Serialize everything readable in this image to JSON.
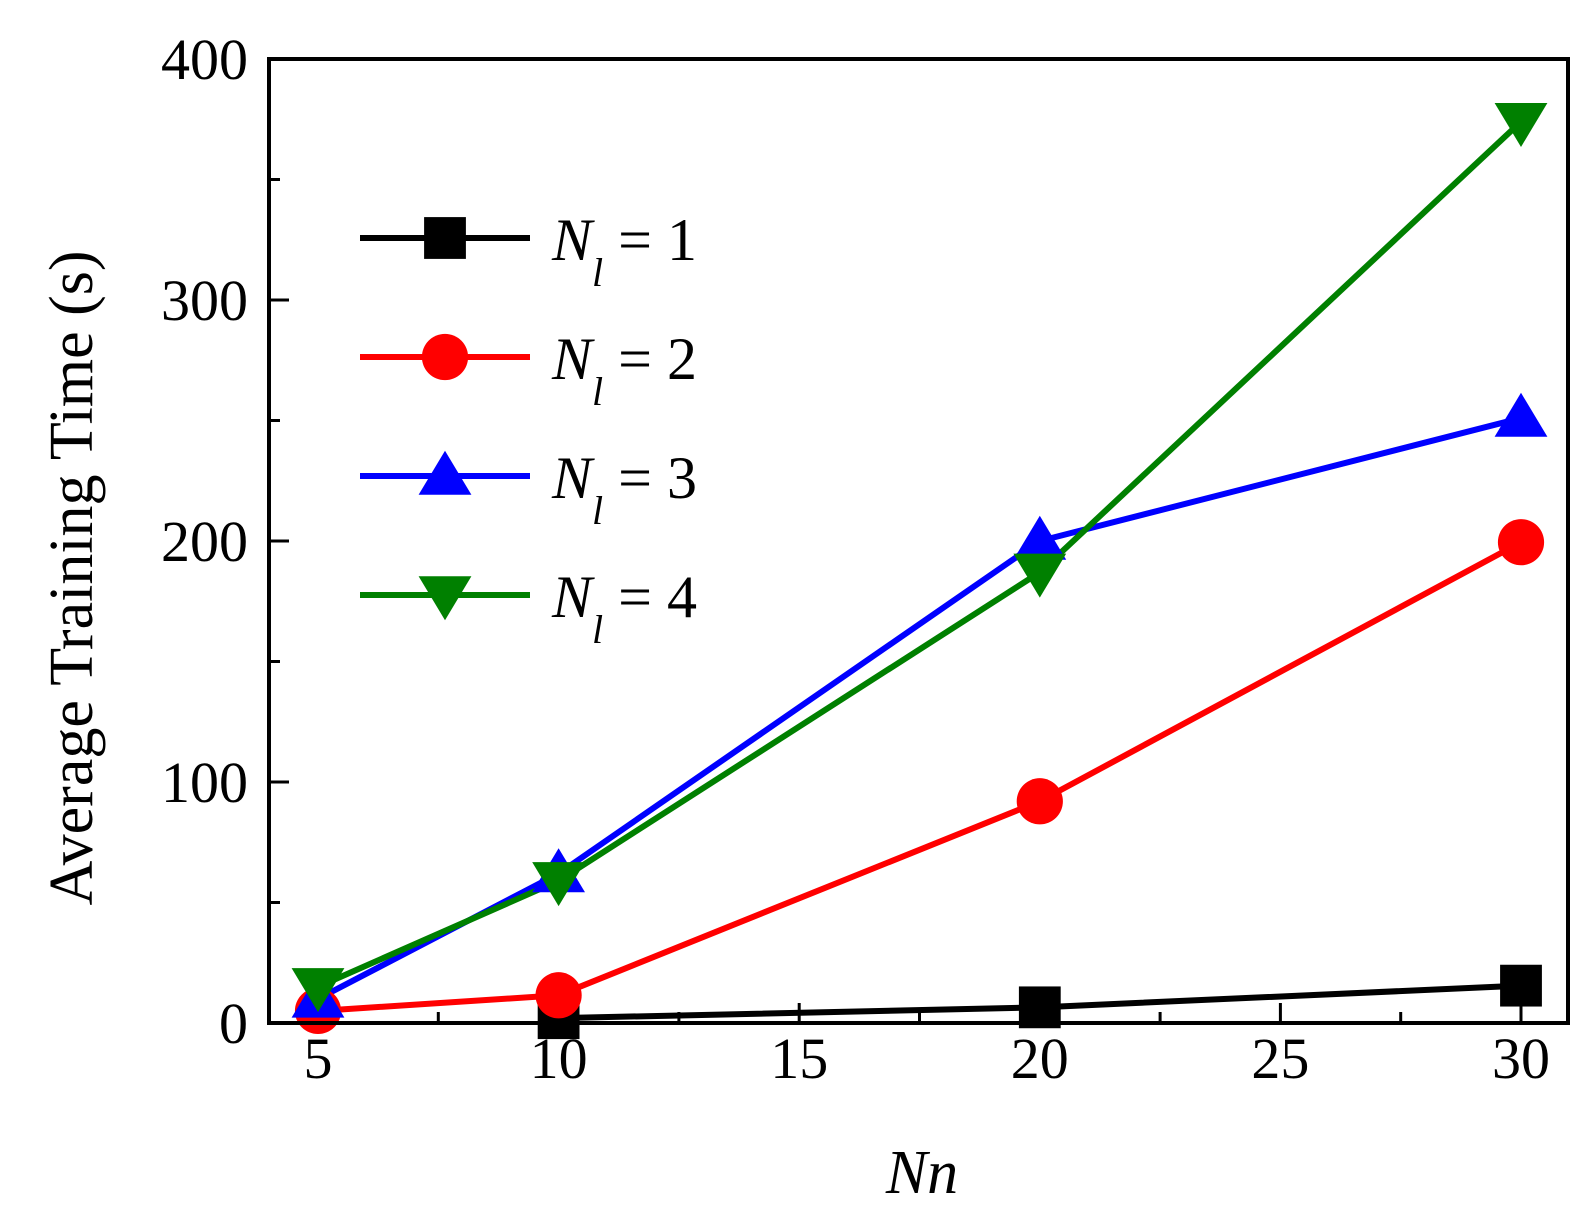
{
  "chart_data": {
    "type": "line",
    "title": "",
    "xlabel": "Nn",
    "ylabel": "Average Training Time (s)",
    "xlim": [
      4,
      31
    ],
    "ylim": [
      0,
      400
    ],
    "x_ticks": [
      5,
      10,
      15,
      20,
      25,
      30
    ],
    "x_tick_labels": [
      "5",
      "10",
      "15",
      "20",
      "25",
      "30"
    ],
    "y_ticks": [
      0,
      100,
      200,
      300,
      400
    ],
    "y_tick_labels": [
      "0",
      "100",
      "200",
      "300",
      "400"
    ],
    "x_minor_ticks": [
      7.5,
      12.5,
      17.5,
      22.5,
      27.5
    ],
    "y_minor_ticks": [
      50,
      150,
      250,
      350
    ],
    "grid": false,
    "legend_position": "top-left",
    "x": [
      5,
      10,
      20,
      30
    ],
    "series": [
      {
        "name": "N_l = 1",
        "legend_symbol": "N",
        "legend_subscript": "l",
        "legend_rest": " = 1",
        "color": "#000000",
        "marker": "square",
        "x": [
          10,
          20,
          30
        ],
        "values": [
          2,
          6.5,
          15.5
        ]
      },
      {
        "name": "N_l = 2",
        "legend_symbol": "N",
        "legend_subscript": "l",
        "legend_rest": " = 2",
        "color": "#ff0000",
        "marker": "circle",
        "x": [
          5,
          10,
          20,
          30
        ],
        "values": [
          5,
          11.5,
          92,
          199.5
        ]
      },
      {
        "name": "N_l = 3",
        "legend_symbol": "N",
        "legend_subscript": "l",
        "legend_rest": " = 3",
        "color": "#0000ff",
        "marker": "triangle-up",
        "x": [
          5,
          10,
          20,
          30
        ],
        "values": [
          10,
          62,
          200,
          251
        ]
      },
      {
        "name": "N_l = 4",
        "legend_symbol": "N",
        "legend_subscript": "l",
        "legend_rest": " = 4",
        "color": "#008000",
        "marker": "triangle-down",
        "x": [
          5,
          10,
          20,
          30
        ],
        "values": [
          15,
          59,
          187,
          374
        ]
      }
    ]
  }
}
